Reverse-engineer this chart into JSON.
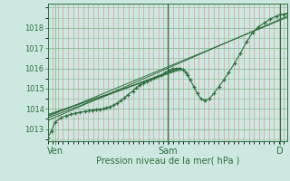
{
  "bg_color": "#cde8e0",
  "plot_bg_color": "#cde8e0",
  "grid_major_color": "#88bb99",
  "grid_minor_color": "#e08888",
  "line_color": "#2d6e3e",
  "marker_color": "#2d6e3e",
  "ylim": [
    1012.4,
    1019.2
  ],
  "yticks": [
    1013,
    1014,
    1015,
    1016,
    1017,
    1018
  ],
  "xlabel": "Pression niveau de la mer( hPa )",
  "xtick_labels": [
    "Ven",
    "Sam",
    "D"
  ],
  "xtick_positions": [
    0.03,
    0.5,
    0.97
  ],
  "series": [
    [
      0.0,
      1012.6
    ],
    [
      0.015,
      1012.9
    ],
    [
      0.03,
      1013.35
    ],
    [
      0.055,
      1013.55
    ],
    [
      0.075,
      1013.65
    ],
    [
      0.095,
      1013.72
    ],
    [
      0.115,
      1013.78
    ],
    [
      0.135,
      1013.83
    ],
    [
      0.155,
      1013.87
    ],
    [
      0.17,
      1013.9
    ],
    [
      0.185,
      1013.93
    ],
    [
      0.2,
      1013.96
    ],
    [
      0.215,
      1013.98
    ],
    [
      0.23,
      1014.0
    ],
    [
      0.245,
      1014.05
    ],
    [
      0.26,
      1014.1
    ],
    [
      0.275,
      1014.18
    ],
    [
      0.29,
      1014.28
    ],
    [
      0.305,
      1014.4
    ],
    [
      0.32,
      1014.55
    ],
    [
      0.335,
      1014.7
    ],
    [
      0.355,
      1014.88
    ],
    [
      0.37,
      1015.05
    ],
    [
      0.385,
      1015.18
    ],
    [
      0.4,
      1015.27
    ],
    [
      0.415,
      1015.35
    ],
    [
      0.43,
      1015.45
    ],
    [
      0.445,
      1015.52
    ],
    [
      0.46,
      1015.6
    ],
    [
      0.475,
      1015.68
    ],
    [
      0.49,
      1015.78
    ],
    [
      0.505,
      1015.88
    ],
    [
      0.52,
      1015.97
    ],
    [
      0.535,
      1016.0
    ],
    [
      0.545,
      1016.0
    ],
    [
      0.555,
      1016.0
    ],
    [
      0.565,
      1015.95
    ],
    [
      0.575,
      1015.82
    ],
    [
      0.585,
      1015.65
    ],
    [
      0.595,
      1015.42
    ],
    [
      0.61,
      1015.1
    ],
    [
      0.625,
      1014.75
    ],
    [
      0.64,
      1014.5
    ],
    [
      0.655,
      1014.42
    ],
    [
      0.675,
      1014.5
    ],
    [
      0.695,
      1014.78
    ],
    [
      0.715,
      1015.1
    ],
    [
      0.735,
      1015.42
    ],
    [
      0.755,
      1015.78
    ],
    [
      0.78,
      1016.25
    ],
    [
      0.805,
      1016.75
    ],
    [
      0.83,
      1017.3
    ],
    [
      0.855,
      1017.75
    ],
    [
      0.88,
      1018.05
    ],
    [
      0.905,
      1018.25
    ],
    [
      0.93,
      1018.45
    ],
    [
      0.955,
      1018.58
    ],
    [
      0.97,
      1018.65
    ],
    [
      0.985,
      1018.68
    ],
    [
      1.0,
      1018.72
    ]
  ],
  "trend_lines": [
    [
      [
        0.0,
        1013.42
      ],
      [
        1.0,
        1018.58
      ]
    ],
    [
      [
        0.0,
        1013.55
      ],
      [
        0.545,
        1016.0
      ]
    ],
    [
      [
        0.0,
        1013.62
      ],
      [
        1.0,
        1018.52
      ]
    ],
    [
      [
        0.0,
        1013.68
      ],
      [
        0.545,
        1015.95
      ]
    ],
    [
      [
        0.0,
        1013.72
      ],
      [
        0.545,
        1015.9
      ]
    ]
  ],
  "vlines": [
    0.5,
    0.97
  ]
}
